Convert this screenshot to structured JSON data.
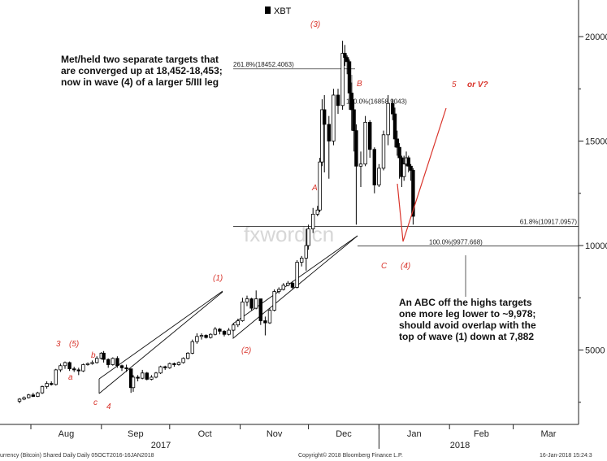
{
  "chart_data": {
    "type": "candlestick",
    "legend": {
      "marker_color": "#000000",
      "label": "XBT",
      "placement": "top-center"
    },
    "watermark": "fxword.cn",
    "x_axis": {
      "month_labels": [
        "Aug",
        "Sep",
        "Oct",
        "Nov",
        "Dec",
        "Jan",
        "Feb",
        "Mar"
      ],
      "year_labels": [
        "2017",
        "2018"
      ]
    },
    "y_axis": {
      "ticks": [
        5000,
        10000,
        15000,
        20000
      ],
      "tick_labels": [
        "5000",
        "10000",
        "15000",
        "20000"
      ],
      "ylim": [
        2000,
        21500
      ]
    },
    "levels": [
      {
        "label": "261.8%(18452.4063)",
        "value": 18452.4063
      },
      {
        "label": "100.0%(16858.9043)",
        "value": 16858.9043
      },
      {
        "label": "61.8%(10917.0957)",
        "value": 10917.0957
      },
      {
        "label": "100.0%(9977.668)",
        "value": 9977.668
      }
    ],
    "wave_labels": [
      "3",
      "(5)",
      "a",
      "b",
      "c",
      "4",
      "(1)",
      "(2)",
      "(3)",
      "A",
      "B",
      "C",
      "(4)",
      "5",
      "or V?"
    ],
    "annotations": [
      "Met/held two separate targets that",
      "are converged up at 18,452-18,453;",
      "now in wave (4) of a larger 5/III leg",
      "An ABC off the highs targets",
      "one more leg lower to ~9,978;",
      "should avoid overlap with the",
      "top of wave (1) down at 7,882"
    ],
    "footer": {
      "left": "urrency (Bitcoin) Shared Daily  Daily 05OCT2016-16JAN2018",
      "center": "Copyright© 2018 Bloomberg Finance L.P.",
      "right": "16-Jan-2018 15:24:3"
    },
    "colors": {
      "candles": "#000000",
      "wave_labels": "#d9342b",
      "projection": "#d9342b",
      "trendlines": "#111111"
    },
    "series": [
      {
        "date": "2017-07-27",
        "open": 2550,
        "high": 2700,
        "low": 2450,
        "close": 2650
      },
      {
        "date": "2017-07-29",
        "open": 2650,
        "high": 2780,
        "low": 2600,
        "close": 2720
      },
      {
        "date": "2017-07-31",
        "open": 2720,
        "high": 2900,
        "low": 2680,
        "close": 2850
      },
      {
        "date": "2017-08-02",
        "open": 2850,
        "high": 2950,
        "low": 2750,
        "close": 2780
      },
      {
        "date": "2017-08-04",
        "open": 2780,
        "high": 3000,
        "low": 2750,
        "close": 2950
      },
      {
        "date": "2017-08-06",
        "open": 2950,
        "high": 3300,
        "low": 2900,
        "close": 3250
      },
      {
        "date": "2017-08-08",
        "open": 3250,
        "high": 3500,
        "low": 3150,
        "close": 3400
      },
      {
        "date": "2017-08-10",
        "open": 3400,
        "high": 3500,
        "low": 3300,
        "close": 3350
      },
      {
        "date": "2017-08-12",
        "open": 3350,
        "high": 4100,
        "low": 3300,
        "close": 4050
      },
      {
        "date": "2017-08-14",
        "open": 4050,
        "high": 4350,
        "low": 3950,
        "close": 4250
      },
      {
        "date": "2017-08-16",
        "open": 4250,
        "high": 4450,
        "low": 4100,
        "close": 4400
      },
      {
        "date": "2017-08-18",
        "open": 4400,
        "high": 4450,
        "low": 4000,
        "close": 4100
      },
      {
        "date": "2017-08-20",
        "open": 4100,
        "high": 4200,
        "low": 3950,
        "close": 4050
      },
      {
        "date": "2017-08-22",
        "open": 4050,
        "high": 4150,
        "low": 3800,
        "close": 4000
      },
      {
        "date": "2017-08-24",
        "open": 4000,
        "high": 4350,
        "low": 3950,
        "close": 4300
      },
      {
        "date": "2017-08-26",
        "open": 4300,
        "high": 4400,
        "low": 4250,
        "close": 4350
      },
      {
        "date": "2017-08-28",
        "open": 4350,
        "high": 4500,
        "low": 4300,
        "close": 4400
      },
      {
        "date": "2017-08-30",
        "open": 4400,
        "high": 4700,
        "low": 4350,
        "close": 4600
      },
      {
        "date": "2017-09-01",
        "open": 4600,
        "high": 4900,
        "low": 4550,
        "close": 4850
      },
      {
        "date": "2017-09-02",
        "open": 4850,
        "high": 4950,
        "low": 4400,
        "close": 4550
      },
      {
        "date": "2017-09-04",
        "open": 4550,
        "high": 4600,
        "low": 4150,
        "close": 4300
      },
      {
        "date": "2017-09-06",
        "open": 4300,
        "high": 4650,
        "low": 4250,
        "close": 4600
      },
      {
        "date": "2017-09-08",
        "open": 4600,
        "high": 4700,
        "low": 4150,
        "close": 4250
      },
      {
        "date": "2017-09-10",
        "open": 4250,
        "high": 4300,
        "low": 4000,
        "close": 4150
      },
      {
        "date": "2017-09-12",
        "open": 4150,
        "high": 4300,
        "low": 3950,
        "close": 4100
      },
      {
        "date": "2017-09-14",
        "open": 4100,
        "high": 4100,
        "low": 2950,
        "close": 3200
      },
      {
        "date": "2017-09-15",
        "open": 3200,
        "high": 3800,
        "low": 3000,
        "close": 3700
      },
      {
        "date": "2017-09-17",
        "open": 3700,
        "high": 3800,
        "low": 3500,
        "close": 3650
      },
      {
        "date": "2017-09-19",
        "open": 3650,
        "high": 4050,
        "low": 3600,
        "close": 3900
      },
      {
        "date": "2017-09-21",
        "open": 3900,
        "high": 3950,
        "low": 3550,
        "close": 3600
      },
      {
        "date": "2017-09-23",
        "open": 3600,
        "high": 3800,
        "low": 3550,
        "close": 3700
      },
      {
        "date": "2017-09-25",
        "open": 3700,
        "high": 3950,
        "low": 3650,
        "close": 3900
      },
      {
        "date": "2017-09-27",
        "open": 3900,
        "high": 4250,
        "low": 3850,
        "close": 4200
      },
      {
        "date": "2017-09-29",
        "open": 4200,
        "high": 4250,
        "low": 4050,
        "close": 4150
      },
      {
        "date": "2017-10-01",
        "open": 4150,
        "high": 4400,
        "low": 4100,
        "close": 4350
      },
      {
        "date": "2017-10-03",
        "open": 4350,
        "high": 4400,
        "low": 4200,
        "close": 4300
      },
      {
        "date": "2017-10-05",
        "open": 4300,
        "high": 4450,
        "low": 4250,
        "close": 4400
      },
      {
        "date": "2017-10-07",
        "open": 4400,
        "high": 4650,
        "low": 4350,
        "close": 4600
      },
      {
        "date": "2017-10-09",
        "open": 4600,
        "high": 4900,
        "low": 4550,
        "close": 4850
      },
      {
        "date": "2017-10-11",
        "open": 4850,
        "high": 5500,
        "low": 4800,
        "close": 5400
      },
      {
        "date": "2017-10-13",
        "open": 5400,
        "high": 5800,
        "low": 5300,
        "close": 5650
      },
      {
        "date": "2017-10-15",
        "open": 5650,
        "high": 5800,
        "low": 5500,
        "close": 5700
      },
      {
        "date": "2017-10-17",
        "open": 5700,
        "high": 5750,
        "low": 5550,
        "close": 5600
      },
      {
        "date": "2017-10-19",
        "open": 5600,
        "high": 5800,
        "low": 5550,
        "close": 5750
      },
      {
        "date": "2017-10-21",
        "open": 5750,
        "high": 6100,
        "low": 5700,
        "close": 6000
      },
      {
        "date": "2017-10-23",
        "open": 6000,
        "high": 6050,
        "low": 5750,
        "close": 5900
      },
      {
        "date": "2017-10-25",
        "open": 5900,
        "high": 5950,
        "low": 5650,
        "close": 5750
      },
      {
        "date": "2017-10-27",
        "open": 5750,
        "high": 6050,
        "low": 5700,
        "close": 5950
      },
      {
        "date": "2017-10-29",
        "open": 5950,
        "high": 6300,
        "low": 5900,
        "close": 6200
      },
      {
        "date": "2017-10-31",
        "open": 6200,
        "high": 6500,
        "low": 6100,
        "close": 6400
      },
      {
        "date": "2017-11-02",
        "open": 6400,
        "high": 7500,
        "low": 6350,
        "close": 7300
      },
      {
        "date": "2017-11-04",
        "open": 7300,
        "high": 7600,
        "low": 7100,
        "close": 7450
      },
      {
        "date": "2017-11-06",
        "open": 7450,
        "high": 7500,
        "low": 6900,
        "close": 7000
      },
      {
        "date": "2017-11-08",
        "open": 7000,
        "high": 7850,
        "low": 6950,
        "close": 7450
      },
      {
        "date": "2017-11-10",
        "open": 7450,
        "high": 7450,
        "low": 6200,
        "close": 6400
      },
      {
        "date": "2017-11-12",
        "open": 6400,
        "high": 6600,
        "low": 5700,
        "close": 6300
      },
      {
        "date": "2017-11-14",
        "open": 6300,
        "high": 7000,
        "low": 6250,
        "close": 6900
      },
      {
        "date": "2017-11-16",
        "open": 6900,
        "high": 7900,
        "low": 6850,
        "close": 7800
      },
      {
        "date": "2017-11-18",
        "open": 7800,
        "high": 8000,
        "low": 7700,
        "close": 7900
      },
      {
        "date": "2017-11-20",
        "open": 7900,
        "high": 8200,
        "low": 7850,
        "close": 8100
      },
      {
        "date": "2017-11-22",
        "open": 8100,
        "high": 8300,
        "low": 8050,
        "close": 8200
      },
      {
        "date": "2017-11-24",
        "open": 8200,
        "high": 8300,
        "low": 7900,
        "close": 8000
      },
      {
        "date": "2017-11-26",
        "open": 8000,
        "high": 9300,
        "low": 7950,
        "close": 9200
      },
      {
        "date": "2017-11-28",
        "open": 9200,
        "high": 9500,
        "low": 9000,
        "close": 9400
      },
      {
        "date": "2017-11-30",
        "open": 9400,
        "high": 10800,
        "low": 8800,
        "close": 10000
      },
      {
        "date": "2017-12-01",
        "open": 10000,
        "high": 11000,
        "low": 9800,
        "close": 10800
      },
      {
        "date": "2017-12-03",
        "open": 10800,
        "high": 11800,
        "low": 10600,
        "close": 11500
      },
      {
        "date": "2017-12-05",
        "open": 11500,
        "high": 11900,
        "low": 11400,
        "close": 11700
      },
      {
        "date": "2017-12-06",
        "open": 11700,
        "high": 14200,
        "low": 11600,
        "close": 14000
      },
      {
        "date": "2017-12-07",
        "open": 14000,
        "high": 17000,
        "low": 13800,
        "close": 16500
      },
      {
        "date": "2017-12-08",
        "open": 16500,
        "high": 17200,
        "low": 13500,
        "close": 15800
      },
      {
        "date": "2017-12-10",
        "open": 15800,
        "high": 16200,
        "low": 13200,
        "close": 15000
      },
      {
        "date": "2017-12-12",
        "open": 15000,
        "high": 17500,
        "low": 14800,
        "close": 17200
      },
      {
        "date": "2017-12-14",
        "open": 17200,
        "high": 17500,
        "low": 16300,
        "close": 16700
      },
      {
        "date": "2017-12-16",
        "open": 16700,
        "high": 19800,
        "low": 16500,
        "close": 19200
      },
      {
        "date": "2017-12-17",
        "open": 19200,
        "high": 19600,
        "low": 18600,
        "close": 19000
      },
      {
        "date": "2017-12-18",
        "open": 19000,
        "high": 19100,
        "low": 18200,
        "close": 18800
      },
      {
        "date": "2017-12-19",
        "open": 18800,
        "high": 18900,
        "low": 16500,
        "close": 17300
      },
      {
        "date": "2017-12-20",
        "open": 17300,
        "high": 17800,
        "low": 15500,
        "close": 16500
      },
      {
        "date": "2017-12-21",
        "open": 16500,
        "high": 17000,
        "low": 14500,
        "close": 15500
      },
      {
        "date": "2017-12-22",
        "open": 15500,
        "high": 15800,
        "low": 11000,
        "close": 13800
      },
      {
        "date": "2017-12-24",
        "open": 13800,
        "high": 14500,
        "low": 12800,
        "close": 13900
      },
      {
        "date": "2017-12-26",
        "open": 13900,
        "high": 16200,
        "low": 13800,
        "close": 15900
      },
      {
        "date": "2017-12-28",
        "open": 15900,
        "high": 16000,
        "low": 14200,
        "close": 14600
      },
      {
        "date": "2017-12-30",
        "open": 14600,
        "high": 14700,
        "low": 12500,
        "close": 12900
      },
      {
        "date": "2018-01-01",
        "open": 12900,
        "high": 13900,
        "low": 12800,
        "close": 13700
      },
      {
        "date": "2018-01-03",
        "open": 13700,
        "high": 15500,
        "low": 13600,
        "close": 15300
      },
      {
        "date": "2018-01-05",
        "open": 15300,
        "high": 17200,
        "low": 14800,
        "close": 16800
      },
      {
        "date": "2018-01-07",
        "open": 16800,
        "high": 17000,
        "low": 16000,
        "close": 16300
      },
      {
        "date": "2018-01-08",
        "open": 16300,
        "high": 16600,
        "low": 14700,
        "close": 15100
      },
      {
        "date": "2018-01-09",
        "open": 15100,
        "high": 15500,
        "low": 14300,
        "close": 14700
      },
      {
        "date": "2018-01-10",
        "open": 14700,
        "high": 14900,
        "low": 13200,
        "close": 14200
      },
      {
        "date": "2018-01-11",
        "open": 14200,
        "high": 14300,
        "low": 12800,
        "close": 13300
      },
      {
        "date": "2018-01-12",
        "open": 13300,
        "high": 14300,
        "low": 13100,
        "close": 13900
      },
      {
        "date": "2018-01-13",
        "open": 13900,
        "high": 14500,
        "low": 13800,
        "close": 14200
      },
      {
        "date": "2018-01-14",
        "open": 14200,
        "high": 14300,
        "low": 13500,
        "close": 13800
      },
      {
        "date": "2018-01-15",
        "open": 13800,
        "high": 13900,
        "low": 13100,
        "close": 13600
      },
      {
        "date": "2018-01-16",
        "open": 13600,
        "high": 13700,
        "low": 11000,
        "close": 11400
      }
    ]
  }
}
